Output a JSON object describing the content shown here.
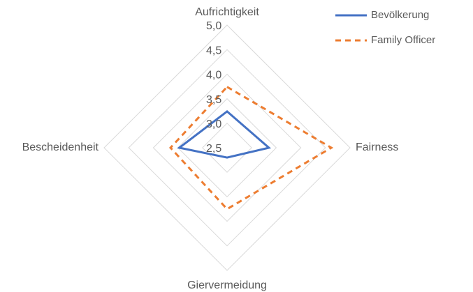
{
  "chart_data": {
    "type": "radar",
    "categories": [
      "Aufrichtigkeit",
      "Fairness",
      "Giervermeidung",
      "Bescheidenheit"
    ],
    "series": [
      {
        "name": "Bevölkerung",
        "color": "#4472c4",
        "dash": "solid",
        "values": [
          3.24,
          3.35,
          2.7,
          3.47
        ]
      },
      {
        "name": "Family Officer",
        "color": "#ed7d31",
        "dash": "dashed",
        "values": [
          3.74,
          4.62,
          3.75,
          3.65
        ]
      }
    ],
    "ylim": [
      2.5,
      5.0
    ],
    "yticks": [
      {
        "value": 2.5,
        "label": "2,5"
      },
      {
        "value": 3.0,
        "label": "3,0"
      },
      {
        "value": 3.5,
        "label": "3,5"
      },
      {
        "value": 4.0,
        "label": "4,0"
      },
      {
        "value": 4.5,
        "label": "4,5"
      },
      {
        "value": 5.0,
        "label": "5,0"
      }
    ],
    "grid": true,
    "legend": "top-right"
  }
}
